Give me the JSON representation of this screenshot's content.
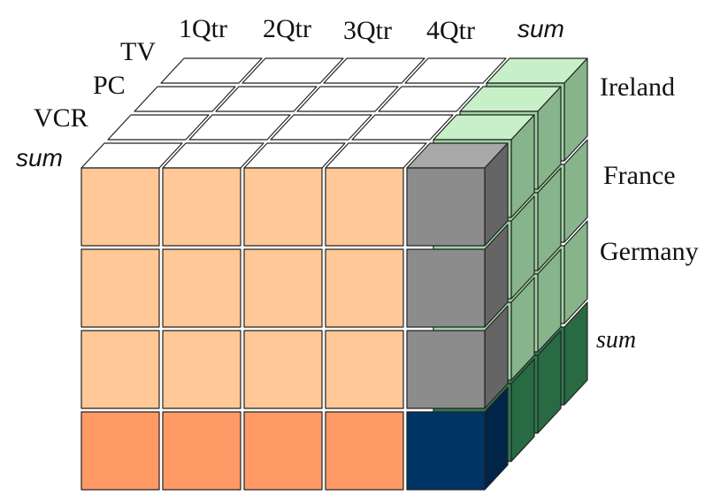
{
  "labels": {
    "quarters": [
      "1Qtr",
      "2Qtr",
      "3Qtr",
      "4Qtr"
    ],
    "quarter_sum": "sum",
    "products": [
      "TV",
      "PC",
      "VCR"
    ],
    "product_sum": "sum",
    "countries": [
      "Ireland",
      "France",
      "Germany"
    ],
    "country_sum": "sum"
  },
  "colors": {
    "base_cell": "#ffc896",
    "sum_country_row": "#ff9a66",
    "sum_quarter_col": "#8c8c8c",
    "grand_total": "#003366",
    "side_green_light": "#c8f0c8",
    "side_green": "#9fd4a4",
    "side_green_dark": "#2e7d4f",
    "top_cell": "#ffffff",
    "outline": "#222222"
  }
}
